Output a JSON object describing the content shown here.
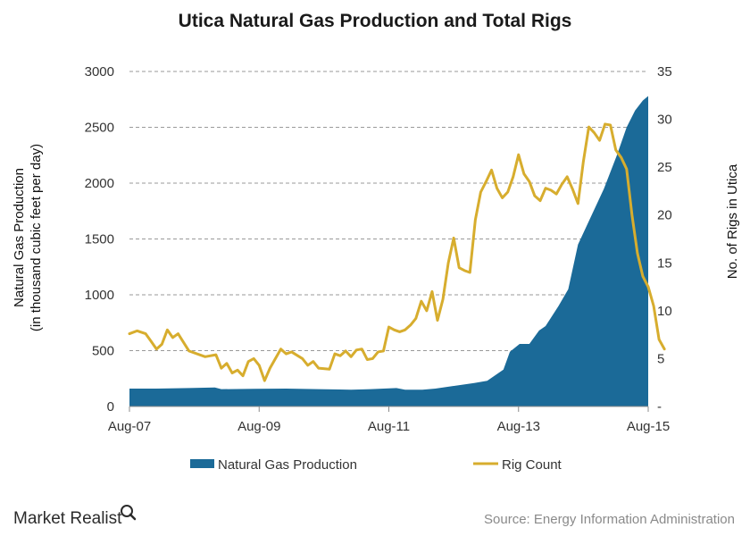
{
  "chart_data": {
    "type": "area",
    "title": "Utica Natural Gas Production and Total Rigs",
    "ylabel_left": [
      "Natural Gas Production",
      "(in thousand cubic feet per day)"
    ],
    "ylabel_right": "No. of Rigs in Utica",
    "x_tick_labels": [
      "Aug-07",
      "Aug-09",
      "Aug-11",
      "Aug-13",
      "Aug-15"
    ],
    "x_tick_values": [
      2007.583,
      2009.583,
      2011.583,
      2013.583,
      2015.583
    ],
    "xlim": [
      2007.583,
      2015.583
    ],
    "ylim_left": [
      0,
      3000
    ],
    "yticks_left": [
      0,
      500,
      1000,
      1500,
      2000,
      2500,
      3000
    ],
    "ylim_right": [
      0,
      35
    ],
    "yticks_right": [
      "-",
      5,
      10,
      15,
      20,
      25,
      30,
      35
    ],
    "grid": true,
    "legend_position": "bottom",
    "series": [
      {
        "name": "Natural Gas Production",
        "type": "area",
        "axis": "left",
        "color": "#1b6a98",
        "points": [
          [
            2007.583,
            160
          ],
          [
            2008.0,
            160
          ],
          [
            2008.5,
            165
          ],
          [
            2008.9,
            170
          ],
          [
            2009.0,
            155
          ],
          [
            2009.5,
            158
          ],
          [
            2010.0,
            160
          ],
          [
            2010.5,
            155
          ],
          [
            2011.0,
            150
          ],
          [
            2011.3,
            155
          ],
          [
            2011.7,
            165
          ],
          [
            2011.833,
            150
          ],
          [
            2012.1,
            150
          ],
          [
            2012.3,
            160
          ],
          [
            2012.6,
            185
          ],
          [
            2012.9,
            210
          ],
          [
            2013.1,
            230
          ],
          [
            2013.25,
            290
          ],
          [
            2013.35,
            330
          ],
          [
            2013.45,
            490
          ],
          [
            2013.6,
            560
          ],
          [
            2013.75,
            560
          ],
          [
            2013.9,
            680
          ],
          [
            2014.0,
            720
          ],
          [
            2014.2,
            900
          ],
          [
            2014.35,
            1050
          ],
          [
            2014.5,
            1450
          ],
          [
            2014.7,
            1700
          ],
          [
            2014.9,
            1950
          ],
          [
            2015.1,
            2250
          ],
          [
            2015.25,
            2500
          ],
          [
            2015.38,
            2650
          ],
          [
            2015.5,
            2740
          ],
          [
            2015.583,
            2780
          ]
        ]
      },
      {
        "name": "Rig Count",
        "type": "line",
        "axis": "right",
        "color": "#d7ad2e",
        "points": [
          [
            2007.583,
            7.6
          ],
          [
            2007.7,
            7.9
          ],
          [
            2007.833,
            7.6
          ],
          [
            2007.917,
            6.8
          ],
          [
            2008.0,
            6.0
          ],
          [
            2008.083,
            6.5
          ],
          [
            2008.167,
            8.0
          ],
          [
            2008.25,
            7.2
          ],
          [
            2008.333,
            7.6
          ],
          [
            2008.5,
            5.8
          ],
          [
            2008.75,
            5.2
          ],
          [
            2008.917,
            5.4
          ],
          [
            2009.0,
            4.0
          ],
          [
            2009.083,
            4.5
          ],
          [
            2009.167,
            3.5
          ],
          [
            2009.25,
            3.8
          ],
          [
            2009.333,
            3.2
          ],
          [
            2009.417,
            4.7
          ],
          [
            2009.5,
            5.0
          ],
          [
            2009.583,
            4.3
          ],
          [
            2009.667,
            2.7
          ],
          [
            2009.75,
            4.0
          ],
          [
            2009.917,
            6.0
          ],
          [
            2010.0,
            5.5
          ],
          [
            2010.083,
            5.7
          ],
          [
            2010.25,
            5.0
          ],
          [
            2010.333,
            4.3
          ],
          [
            2010.417,
            4.7
          ],
          [
            2010.5,
            4.0
          ],
          [
            2010.667,
            3.9
          ],
          [
            2010.75,
            5.5
          ],
          [
            2010.833,
            5.3
          ],
          [
            2010.917,
            5.8
          ],
          [
            2011.0,
            5.2
          ],
          [
            2011.083,
            5.9
          ],
          [
            2011.167,
            6.0
          ],
          [
            2011.25,
            4.9
          ],
          [
            2011.333,
            5.0
          ],
          [
            2011.417,
            5.7
          ],
          [
            2011.5,
            5.8
          ],
          [
            2011.583,
            8.3
          ],
          [
            2011.667,
            8.0
          ],
          [
            2011.75,
            7.8
          ],
          [
            2011.833,
            8.0
          ],
          [
            2011.917,
            8.5
          ],
          [
            2012.0,
            9.2
          ],
          [
            2012.083,
            11.0
          ],
          [
            2012.167,
            10.0
          ],
          [
            2012.25,
            12.0
          ],
          [
            2012.333,
            9.0
          ],
          [
            2012.417,
            11.2
          ],
          [
            2012.5,
            15.0
          ],
          [
            2012.583,
            17.6
          ],
          [
            2012.667,
            14.5
          ],
          [
            2012.75,
            14.2
          ],
          [
            2012.833,
            14.0
          ],
          [
            2012.917,
            19.5
          ],
          [
            2013.0,
            22.4
          ],
          [
            2013.083,
            23.5
          ],
          [
            2013.167,
            24.7
          ],
          [
            2013.25,
            22.8
          ],
          [
            2013.333,
            21.8
          ],
          [
            2013.417,
            22.4
          ],
          [
            2013.5,
            24.0
          ],
          [
            2013.583,
            26.3
          ],
          [
            2013.667,
            24.3
          ],
          [
            2013.75,
            23.5
          ],
          [
            2013.833,
            22.0
          ],
          [
            2013.917,
            21.5
          ],
          [
            2014.0,
            22.8
          ],
          [
            2014.083,
            22.6
          ],
          [
            2014.167,
            22.2
          ],
          [
            2014.25,
            23.2
          ],
          [
            2014.333,
            24.0
          ],
          [
            2014.417,
            22.7
          ],
          [
            2014.5,
            21.2
          ],
          [
            2014.583,
            25.6
          ],
          [
            2014.667,
            29.2
          ],
          [
            2014.75,
            28.6
          ],
          [
            2014.833,
            27.8
          ],
          [
            2014.917,
            29.5
          ],
          [
            2015.0,
            29.4
          ],
          [
            2015.083,
            26.8
          ],
          [
            2015.167,
            26.0
          ],
          [
            2015.25,
            24.8
          ],
          [
            2015.333,
            20.0
          ],
          [
            2015.417,
            16.0
          ],
          [
            2015.5,
            13.6
          ],
          [
            2015.583,
            12.5
          ],
          [
            2015.667,
            10.5
          ],
          [
            2015.75,
            7.0
          ],
          [
            2015.833,
            6.0
          ]
        ]
      }
    ]
  },
  "brand": {
    "name": "Market Realist"
  },
  "source": "Source:  Energy Information  Administration"
}
